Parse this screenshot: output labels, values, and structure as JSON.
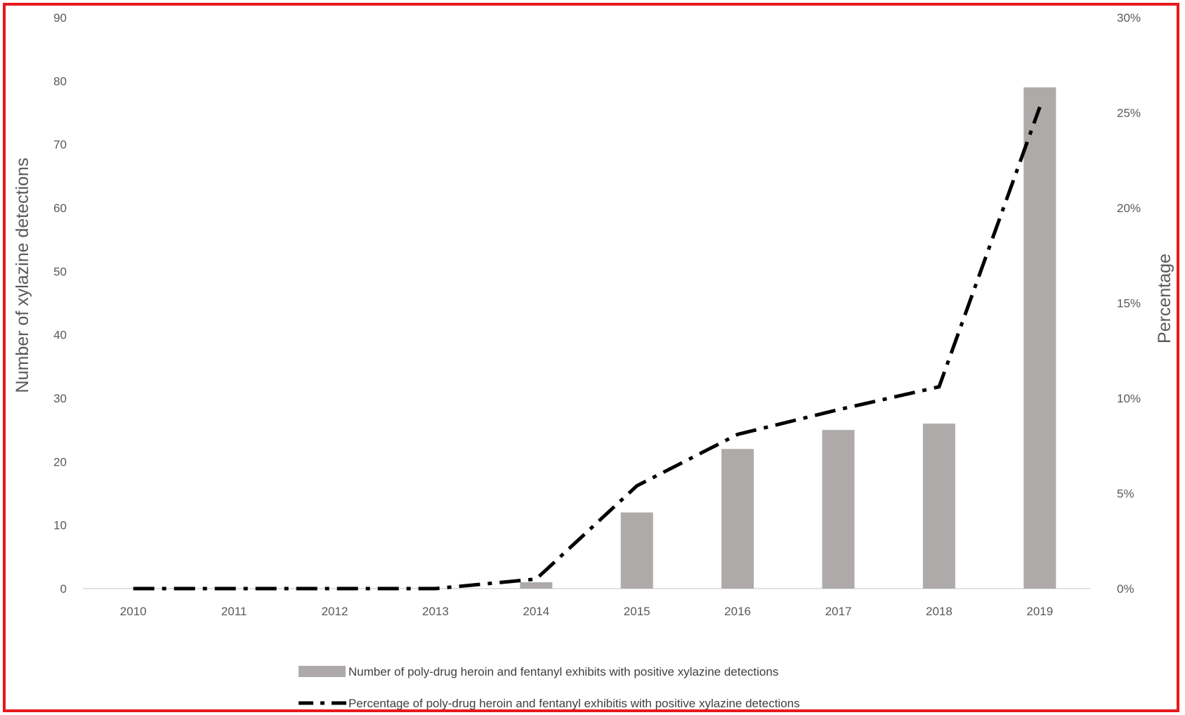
{
  "chart_data": {
    "type": "bar",
    "categories": [
      "2010",
      "2011",
      "2012",
      "2013",
      "2014",
      "2015",
      "2016",
      "2017",
      "2018",
      "2019"
    ],
    "series": [
      {
        "name": "Number of poly-drug heroin and fentanyl exhibits with positive xylazine detections",
        "type": "bar",
        "axis": "left",
        "color": "#aeaaa9",
        "values": [
          0,
          0,
          0,
          0,
          1,
          12,
          22,
          25,
          26,
          79
        ]
      },
      {
        "name": "Percentage of poly-drug heroin and fentanyl exhibitis with positive xylazine detections",
        "type": "line",
        "style": "dash-dot",
        "axis": "right",
        "color": "#000000",
        "values": [
          0,
          0,
          0,
          0,
          0.5,
          5.4,
          8.1,
          9.4,
          10.6,
          25.3
        ]
      }
    ],
    "ylabel": "Number of xylazine detections",
    "ylim": [
      0,
      90
    ],
    "yticks": [
      "0",
      "10",
      "20",
      "30",
      "40",
      "50",
      "60",
      "70",
      "80",
      "90"
    ],
    "y2label": "Percentage",
    "y2lim": [
      0,
      30
    ],
    "y2ticks": [
      "0%",
      "5%",
      "10%",
      "15%",
      "20%",
      "25%",
      "30%"
    ],
    "legend_position": "bottom",
    "grid": false,
    "frame_color": "#e8191c"
  }
}
